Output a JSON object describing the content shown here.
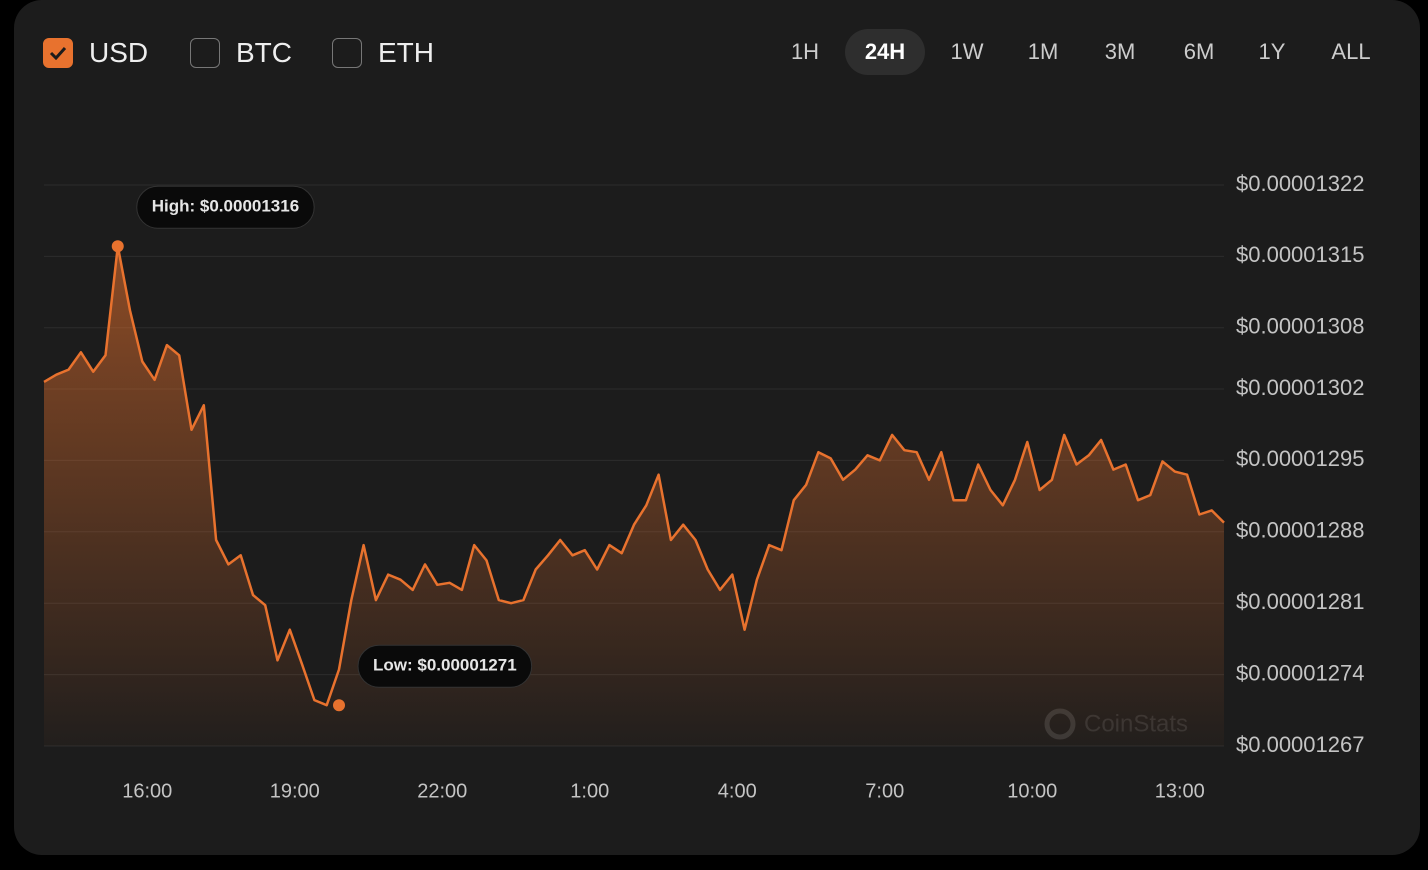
{
  "currencies": [
    {
      "label": "USD",
      "checked": true
    },
    {
      "label": "BTC",
      "checked": false
    },
    {
      "label": "ETH",
      "checked": false
    }
  ],
  "ranges": {
    "options": [
      "1H",
      "24H",
      "1W",
      "1M",
      "3M",
      "6M",
      "1Y",
      "ALL"
    ],
    "active": 1
  },
  "watermark": "CoinStats",
  "chart_data": {
    "type": "area",
    "color": "#e8722e",
    "grid": true,
    "xlim": [
      13.9,
      37.9
    ],
    "xticks": [
      {
        "value": 16,
        "label": "16:00"
      },
      {
        "value": 19,
        "label": "19:00"
      },
      {
        "value": 22,
        "label": "22:00"
      },
      {
        "value": 25,
        "label": "1:00"
      },
      {
        "value": 28,
        "label": "4:00"
      },
      {
        "value": 31,
        "label": "7:00"
      },
      {
        "value": 34,
        "label": "10:00"
      },
      {
        "value": 37,
        "label": "13:00"
      }
    ],
    "ylim": [
      1.267e-05,
      1.322e-05
    ],
    "yticks": [
      {
        "value": 1.322e-05,
        "label": "$0.00001322"
      },
      {
        "value": 1.315e-05,
        "label": "$0.00001315"
      },
      {
        "value": 1.308e-05,
        "label": "$0.00001308"
      },
      {
        "value": 1.302e-05,
        "label": "$0.00001302"
      },
      {
        "value": 1.295e-05,
        "label": "$0.00001295"
      },
      {
        "value": 1.288e-05,
        "label": "$0.00001288"
      },
      {
        "value": 1.281e-05,
        "label": "$0.00001281"
      },
      {
        "value": 1.274e-05,
        "label": "$0.00001274"
      },
      {
        "value": 1.267e-05,
        "label": "$0.00001267"
      }
    ],
    "annotations": [
      {
        "label": "High: $0.00001316",
        "x": 15.4,
        "y": 1.316e-05
      },
      {
        "label": "Low: $0.00001271",
        "x": 19.9,
        "y": 1.271e-05
      }
    ],
    "x": [
      13.9,
      14.15,
      14.4,
      14.65,
      14.9,
      15.15,
      15.4,
      15.65,
      15.9,
      16.15,
      16.4,
      16.65,
      16.9,
      17.15,
      17.4,
      17.65,
      17.9,
      18.15,
      18.4,
      18.65,
      18.9,
      19.15,
      19.4,
      19.65,
      19.9,
      20.15,
      20.4,
      20.65,
      20.9,
      21.15,
      21.4,
      21.65,
      21.9,
      22.15,
      22.4,
      22.65,
      22.9,
      23.15,
      23.4,
      23.65,
      23.9,
      24.15,
      24.4,
      24.65,
      24.9,
      25.15,
      25.4,
      25.65,
      25.9,
      26.15,
      26.4,
      26.65,
      26.9,
      27.15,
      27.4,
      27.65,
      27.9,
      28.15,
      28.4,
      28.65,
      28.9,
      29.15,
      29.4,
      29.65,
      29.9,
      30.15,
      30.4,
      30.65,
      30.9,
      31.15,
      31.4,
      31.65,
      31.9,
      32.15,
      32.4,
      32.65,
      32.9,
      33.15,
      33.4,
      33.65,
      33.9,
      34.15,
      34.4,
      34.65,
      34.9,
      35.15,
      35.4,
      35.65,
      35.9,
      36.15,
      36.4,
      36.65,
      36.9,
      37.15,
      37.4,
      37.65,
      37.9
    ],
    "values": [
      1.3027e-05,
      1.3034e-05,
      1.3039e-05,
      1.3056e-05,
      1.3037e-05,
      1.3053e-05,
      1.316e-05,
      1.3097e-05,
      1.3047e-05,
      1.3029e-05,
      1.3063e-05,
      1.3053e-05,
      1.298e-05,
      1.3004e-05,
      1.2872e-05,
      1.2848e-05,
      1.2857e-05,
      1.2818e-05,
      1.2808e-05,
      1.2754e-05,
      1.2784e-05,
      1.275e-05,
      1.2715e-05,
      1.271e-05,
      1.2745e-05,
      1.2813e-05,
      1.2867e-05,
      1.2813e-05,
      1.2838e-05,
      1.2833e-05,
      1.2823e-05,
      1.2848e-05,
      1.2828e-05,
      1.283e-05,
      1.2823e-05,
      1.2867e-05,
      1.2852e-05,
      1.2813e-05,
      1.281e-05,
      1.2813e-05,
      1.2843e-05,
      1.2857e-05,
      1.2872e-05,
      1.2857e-05,
      1.2862e-05,
      1.2843e-05,
      1.2867e-05,
      1.2859e-05,
      1.2887e-05,
      1.2906e-05,
      1.2936e-05,
      1.2872e-05,
      1.2887e-05,
      1.2872e-05,
      1.2843e-05,
      1.2823e-05,
      1.2838e-05,
      1.2784e-05,
      1.2833e-05,
      1.2867e-05,
      1.2862e-05,
      1.2911e-05,
      1.2926e-05,
      1.2958e-05,
      1.2952e-05,
      1.2931e-05,
      1.2941e-05,
      1.2955e-05,
      1.295e-05,
      1.2975e-05,
      1.296e-05,
      1.2958e-05,
      1.2931e-05,
      1.2958e-05,
      1.2911e-05,
      1.2911e-05,
      1.2946e-05,
      1.2921e-05,
      1.2906e-05,
      1.2931e-05,
      1.2968e-05,
      1.2921e-05,
      1.2931e-05,
      1.2975e-05,
      1.2946e-05,
      1.2955e-05,
      1.297e-05,
      1.2941e-05,
      1.2946e-05,
      1.2911e-05,
      1.2916e-05,
      1.2949e-05,
      1.2939e-05,
      1.2936e-05,
      1.2897e-05,
      1.2901e-05,
      1.2889e-05
    ]
  }
}
